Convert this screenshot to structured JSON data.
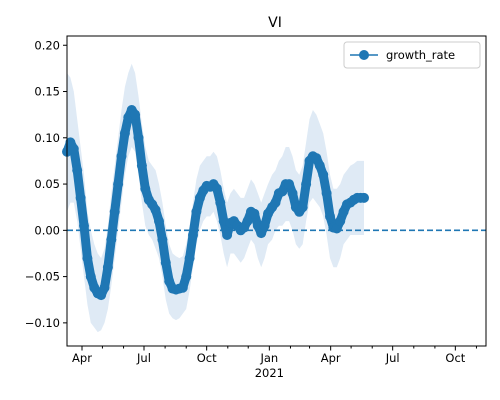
{
  "chart_data": {
    "type": "line",
    "title": "VI",
    "xlabel": "",
    "ylabel": "",
    "x_range": [
      "2020-03-10",
      "2021-11-15"
    ],
    "ylim": [
      -0.125,
      0.21
    ],
    "grid": false,
    "legend": {
      "placement": "top-right",
      "entries": [
        "growth_rate"
      ]
    },
    "y_ticks": [
      {
        "value": -0.1,
        "label": "−0.10"
      },
      {
        "value": -0.05,
        "label": "−0.05"
      },
      {
        "value": 0.0,
        "label": "0.00"
      },
      {
        "value": 0.05,
        "label": "0.05"
      },
      {
        "value": 0.1,
        "label": "0.10"
      },
      {
        "value": 0.15,
        "label": "0.15"
      },
      {
        "value": 0.2,
        "label": "0.20"
      }
    ],
    "x_major_ticks": [
      {
        "date": "2020-04-01",
        "label": "Apr"
      },
      {
        "date": "2020-07-01",
        "label": "Jul"
      },
      {
        "date": "2020-10-01",
        "label": "Oct"
      },
      {
        "date": "2021-01-01",
        "label": "Jan",
        "sublabel": "2021"
      },
      {
        "date": "2021-04-01",
        "label": "Apr"
      },
      {
        "date": "2021-07-01",
        "label": "Jul"
      },
      {
        "date": "2021-10-01",
        "label": "Oct"
      }
    ],
    "x_minor_ticks": [
      "2020-05-01",
      "2020-06-01",
      "2020-08-01",
      "2020-09-01",
      "2020-11-01",
      "2020-12-01",
      "2021-02-01",
      "2021-03-01",
      "2021-05-01",
      "2021-06-01",
      "2021-08-01",
      "2021-09-01",
      "2021-11-01"
    ],
    "reference_line": {
      "y": 0.0,
      "style": "dashed"
    },
    "series": [
      {
        "name": "growth_rate",
        "color": "#1f77b4",
        "band_color": "#dfeaf5",
        "points": [
          {
            "x": "2020-03-10",
            "y": 0.085,
            "lo": 0.02,
            "hi": 0.17
          },
          {
            "x": "2020-03-15",
            "y": 0.095,
            "lo": 0.03,
            "hi": 0.165
          },
          {
            "x": "2020-03-20",
            "y": 0.088,
            "lo": 0.03,
            "hi": 0.15
          },
          {
            "x": "2020-03-25",
            "y": 0.065,
            "lo": 0.01,
            "hi": 0.12
          },
          {
            "x": "2020-03-30",
            "y": 0.035,
            "lo": -0.02,
            "hi": 0.09
          },
          {
            "x": "2020-04-04",
            "y": 0.005,
            "lo": -0.05,
            "hi": 0.06
          },
          {
            "x": "2020-04-09",
            "y": -0.03,
            "lo": -0.08,
            "hi": 0.02
          },
          {
            "x": "2020-04-14",
            "y": -0.05,
            "lo": -0.1,
            "hi": 0.0
          },
          {
            "x": "2020-04-19",
            "y": -0.062,
            "lo": -0.105,
            "hi": -0.015
          },
          {
            "x": "2020-04-24",
            "y": -0.068,
            "lo": -0.11,
            "hi": -0.025
          },
          {
            "x": "2020-04-29",
            "y": -0.07,
            "lo": -0.108,
            "hi": -0.03
          },
          {
            "x": "2020-05-04",
            "y": -0.062,
            "lo": -0.1,
            "hi": -0.02
          },
          {
            "x": "2020-05-09",
            "y": -0.04,
            "lo": -0.085,
            "hi": 0.005
          },
          {
            "x": "2020-05-14",
            "y": -0.01,
            "lo": -0.06,
            "hi": 0.04
          },
          {
            "x": "2020-05-19",
            "y": 0.02,
            "lo": -0.03,
            "hi": 0.07
          },
          {
            "x": "2020-05-24",
            "y": 0.05,
            "lo": 0.0,
            "hi": 0.1
          },
          {
            "x": "2020-05-29",
            "y": 0.08,
            "lo": 0.03,
            "hi": 0.13
          },
          {
            "x": "2020-06-03",
            "y": 0.105,
            "lo": 0.06,
            "hi": 0.155
          },
          {
            "x": "2020-06-08",
            "y": 0.122,
            "lo": 0.08,
            "hi": 0.17
          },
          {
            "x": "2020-06-13",
            "y": 0.13,
            "lo": 0.09,
            "hi": 0.18
          },
          {
            "x": "2020-06-18",
            "y": 0.125,
            "lo": 0.085,
            "hi": 0.17
          },
          {
            "x": "2020-06-23",
            "y": 0.1,
            "lo": 0.06,
            "hi": 0.145
          },
          {
            "x": "2020-06-28",
            "y": 0.07,
            "lo": 0.03,
            "hi": 0.115
          },
          {
            "x": "2020-07-03",
            "y": 0.045,
            "lo": 0.005,
            "hi": 0.09
          },
          {
            "x": "2020-07-08",
            "y": 0.033,
            "lo": -0.005,
            "hi": 0.075
          },
          {
            "x": "2020-07-13",
            "y": 0.028,
            "lo": -0.01,
            "hi": 0.07
          },
          {
            "x": "2020-07-18",
            "y": 0.022,
            "lo": -0.02,
            "hi": 0.065
          },
          {
            "x": "2020-07-23",
            "y": 0.01,
            "lo": -0.03,
            "hi": 0.05
          },
          {
            "x": "2020-07-28",
            "y": -0.01,
            "lo": -0.05,
            "hi": 0.03
          },
          {
            "x": "2020-08-02",
            "y": -0.035,
            "lo": -0.075,
            "hi": 0.005
          },
          {
            "x": "2020-08-07",
            "y": -0.055,
            "lo": -0.09,
            "hi": -0.015
          },
          {
            "x": "2020-08-12",
            "y": -0.063,
            "lo": -0.095,
            "hi": -0.025
          },
          {
            "x": "2020-08-17",
            "y": -0.064,
            "lo": -0.097,
            "hi": -0.028
          },
          {
            "x": "2020-08-22",
            "y": -0.063,
            "lo": -0.095,
            "hi": -0.03
          },
          {
            "x": "2020-08-27",
            "y": -0.062,
            "lo": -0.09,
            "hi": -0.028
          },
          {
            "x": "2020-09-01",
            "y": -0.05,
            "lo": -0.085,
            "hi": -0.015
          },
          {
            "x": "2020-09-06",
            "y": -0.03,
            "lo": -0.065,
            "hi": 0.005
          },
          {
            "x": "2020-09-11",
            "y": -0.005,
            "lo": -0.04,
            "hi": 0.03
          },
          {
            "x": "2020-09-16",
            "y": 0.02,
            "lo": -0.015,
            "hi": 0.055
          },
          {
            "x": "2020-09-21",
            "y": 0.035,
            "lo": 0.0,
            "hi": 0.07
          },
          {
            "x": "2020-09-26",
            "y": 0.043,
            "lo": 0.01,
            "hi": 0.075
          },
          {
            "x": "2020-10-01",
            "y": 0.048,
            "lo": 0.015,
            "hi": 0.08
          },
          {
            "x": "2020-10-06",
            "y": 0.047,
            "lo": 0.015,
            "hi": 0.08
          },
          {
            "x": "2020-10-11",
            "y": 0.05,
            "lo": 0.02,
            "hi": 0.085
          },
          {
            "x": "2020-10-16",
            "y": 0.045,
            "lo": 0.01,
            "hi": 0.08
          },
          {
            "x": "2020-10-21",
            "y": 0.03,
            "lo": -0.005,
            "hi": 0.065
          },
          {
            "x": "2020-10-26",
            "y": 0.01,
            "lo": -0.025,
            "hi": 0.045
          },
          {
            "x": "2020-10-31",
            "y": -0.005,
            "lo": -0.04,
            "hi": 0.03
          },
          {
            "x": "2020-11-05",
            "y": 0.008,
            "lo": -0.025,
            "hi": 0.04
          },
          {
            "x": "2020-11-10",
            "y": 0.01,
            "lo": -0.025,
            "hi": 0.045
          },
          {
            "x": "2020-11-15",
            "y": 0.005,
            "lo": -0.03,
            "hi": 0.04
          },
          {
            "x": "2020-11-20",
            "y": 0.0,
            "lo": -0.035,
            "hi": 0.035
          },
          {
            "x": "2020-11-25",
            "y": 0.003,
            "lo": -0.03,
            "hi": 0.035
          },
          {
            "x": "2020-11-30",
            "y": 0.01,
            "lo": -0.02,
            "hi": 0.045
          },
          {
            "x": "2020-12-05",
            "y": 0.02,
            "lo": -0.01,
            "hi": 0.055
          },
          {
            "x": "2020-12-10",
            "y": 0.018,
            "lo": -0.015,
            "hi": 0.05
          },
          {
            "x": "2020-12-15",
            "y": 0.005,
            "lo": -0.03,
            "hi": 0.04
          },
          {
            "x": "2020-12-20",
            "y": -0.003,
            "lo": -0.04,
            "hi": 0.03
          },
          {
            "x": "2020-12-25",
            "y": 0.005,
            "lo": -0.03,
            "hi": 0.04
          },
          {
            "x": "2020-12-30",
            "y": 0.018,
            "lo": -0.015,
            "hi": 0.05
          },
          {
            "x": "2021-01-05",
            "y": 0.025,
            "lo": -0.01,
            "hi": 0.06
          },
          {
            "x": "2021-01-10",
            "y": 0.03,
            "lo": 0.0,
            "hi": 0.065
          },
          {
            "x": "2021-01-15",
            "y": 0.04,
            "lo": 0.005,
            "hi": 0.075
          },
          {
            "x": "2021-01-20",
            "y": 0.042,
            "lo": 0.005,
            "hi": 0.08
          },
          {
            "x": "2021-01-25",
            "y": 0.05,
            "lo": 0.01,
            "hi": 0.09
          },
          {
            "x": "2021-01-30",
            "y": 0.05,
            "lo": 0.01,
            "hi": 0.09
          },
          {
            "x": "2021-02-04",
            "y": 0.04,
            "lo": 0.0,
            "hi": 0.08
          },
          {
            "x": "2021-02-09",
            "y": 0.025,
            "lo": -0.015,
            "hi": 0.065
          },
          {
            "x": "2021-02-14",
            "y": 0.02,
            "lo": -0.02,
            "hi": 0.06
          },
          {
            "x": "2021-02-19",
            "y": 0.025,
            "lo": -0.015,
            "hi": 0.07
          },
          {
            "x": "2021-02-24",
            "y": 0.05,
            "lo": 0.01,
            "hi": 0.095
          },
          {
            "x": "2021-03-01",
            "y": 0.075,
            "lo": 0.03,
            "hi": 0.12
          },
          {
            "x": "2021-03-06",
            "y": 0.08,
            "lo": 0.035,
            "hi": 0.13
          },
          {
            "x": "2021-03-11",
            "y": 0.078,
            "lo": 0.03,
            "hi": 0.125
          },
          {
            "x": "2021-03-16",
            "y": 0.07,
            "lo": 0.025,
            "hi": 0.115
          },
          {
            "x": "2021-03-21",
            "y": 0.06,
            "lo": 0.015,
            "hi": 0.105
          },
          {
            "x": "2021-03-26",
            "y": 0.04,
            "lo": -0.005,
            "hi": 0.085
          },
          {
            "x": "2021-03-31",
            "y": 0.015,
            "lo": -0.03,
            "hi": 0.06
          },
          {
            "x": "2021-04-05",
            "y": 0.003,
            "lo": -0.04,
            "hi": 0.045
          },
          {
            "x": "2021-04-10",
            "y": 0.002,
            "lo": -0.04,
            "hi": 0.045
          },
          {
            "x": "2021-04-15",
            "y": 0.01,
            "lo": -0.03,
            "hi": 0.05
          },
          {
            "x": "2021-04-20",
            "y": 0.02,
            "lo": -0.015,
            "hi": 0.06
          },
          {
            "x": "2021-04-25",
            "y": 0.028,
            "lo": -0.01,
            "hi": 0.065
          },
          {
            "x": "2021-04-30",
            "y": 0.03,
            "lo": -0.005,
            "hi": 0.07
          },
          {
            "x": "2021-05-05",
            "y": 0.033,
            "lo": -0.005,
            "hi": 0.072
          },
          {
            "x": "2021-05-10",
            "y": 0.035,
            "lo": -0.005,
            "hi": 0.075
          },
          {
            "x": "2021-05-15",
            "y": 0.035,
            "lo": -0.005,
            "hi": 0.075
          },
          {
            "x": "2021-05-20",
            "y": 0.035,
            "lo": -0.005,
            "hi": 0.075
          }
        ]
      }
    ]
  }
}
